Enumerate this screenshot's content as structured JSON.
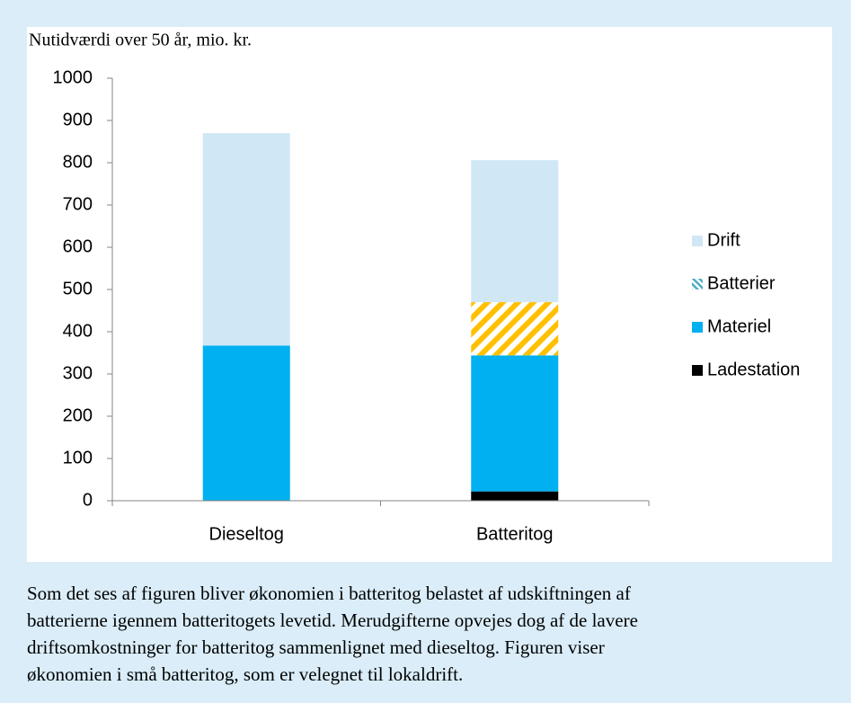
{
  "chart_data": {
    "type": "stacked_bar",
    "title": "Nutidværdi over 50 år, mio. kr.",
    "categories": [
      "Dieseltog",
      "Batteritog"
    ],
    "series": [
      {
        "name": "Ladestation",
        "color": "#000000",
        "values": [
          0,
          22
        ]
      },
      {
        "name": "Materiel",
        "color": "#00b0f0",
        "values": [
          367,
          322
        ]
      },
      {
        "name": "Batterier",
        "color": "#ffc000",
        "pattern": "hatch",
        "values": [
          0,
          126
        ]
      },
      {
        "name": "Drift",
        "color": "#d0e7f6",
        "values": [
          503,
          336
        ]
      }
    ],
    "ylim": [
      0,
      1000
    ],
    "yticks": [
      0,
      100,
      200,
      300,
      400,
      500,
      600,
      700,
      800,
      900,
      1000
    ],
    "grid": false,
    "legend": "right"
  },
  "caption": [
    "Som det ses af figuren bliver økonomien i batteritog belastet af udskiftningen af",
    "batterierne igennem batteritogets levetid. Merudgifterne opvejes dog af de lavere",
    "driftsomkostninger for batteritog sammenlignet med dieseltog. Figuren viser",
    "økonomien i små batteritog, som er velegnet til lokaldrift."
  ]
}
